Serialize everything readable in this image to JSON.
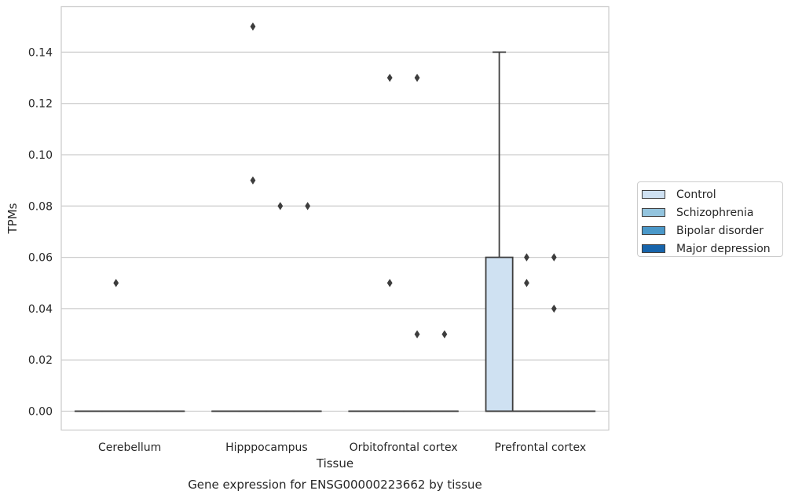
{
  "chart_data": {
    "type": "box",
    "title": "Gene expression for ENSG00000223662 by tissue",
    "xlabel": "Tissue",
    "ylabel": "TPMs",
    "categories": [
      "Cerebellum",
      "Hipppocampus",
      "Orbitofrontal cortex",
      "Prefrontal cortex"
    ],
    "ylim": [
      -0.007,
      0.158
    ],
    "yticks": [
      0.0,
      0.02,
      0.04,
      0.06,
      0.08,
      0.1,
      0.12,
      0.14
    ],
    "ytick_labels": [
      "0.00",
      "0.02",
      "0.04",
      "0.06",
      "0.08",
      "0.10",
      "0.12",
      "0.14"
    ],
    "grid": true,
    "legend_position": "right",
    "series": [
      {
        "name": "Control",
        "color": "#cfe1f2",
        "boxes": [
          {
            "category": "Cerebellum",
            "q1": 0,
            "median": 0,
            "q3": 0,
            "whisker_low": 0,
            "whisker_high": 0,
            "outliers": []
          },
          {
            "category": "Hipppocampus",
            "q1": 0,
            "median": 0,
            "q3": 0,
            "whisker_low": 0,
            "whisker_high": 0,
            "outliers": []
          },
          {
            "category": "Orbitofrontal cortex",
            "q1": 0,
            "median": 0,
            "q3": 0,
            "whisker_low": 0,
            "whisker_high": 0,
            "outliers": []
          },
          {
            "category": "Prefrontal cortex",
            "q1": 0,
            "median": 0,
            "q3": 0.06,
            "whisker_low": 0,
            "whisker_high": 0.14,
            "outliers": []
          }
        ]
      },
      {
        "name": "Schizophrenia",
        "color": "#93c4de",
        "boxes": [
          {
            "category": "Cerebellum",
            "q1": 0,
            "median": 0,
            "q3": 0,
            "whisker_low": 0,
            "whisker_high": 0,
            "outliers": [
              0.05
            ]
          },
          {
            "category": "Hipppocampus",
            "q1": 0,
            "median": 0,
            "q3": 0,
            "whisker_low": 0,
            "whisker_high": 0,
            "outliers": [
              0.09,
              0.15
            ]
          },
          {
            "category": "Orbitofrontal cortex",
            "q1": 0,
            "median": 0,
            "q3": 0,
            "whisker_low": 0,
            "whisker_high": 0,
            "outliers": [
              0.13,
              0.05
            ]
          },
          {
            "category": "Prefrontal cortex",
            "q1": 0,
            "median": 0,
            "q3": 0,
            "whisker_low": 0,
            "whisker_high": 0,
            "outliers": [
              0.06,
              0.05
            ]
          }
        ]
      },
      {
        "name": "Bipolar disorder",
        "color": "#4a98c9",
        "boxes": [
          {
            "category": "Cerebellum",
            "q1": 0,
            "median": 0,
            "q3": 0,
            "whisker_low": 0,
            "whisker_high": 0,
            "outliers": []
          },
          {
            "category": "Hipppocampus",
            "q1": 0,
            "median": 0,
            "q3": 0,
            "whisker_low": 0,
            "whisker_high": 0,
            "outliers": [
              0.08
            ]
          },
          {
            "category": "Orbitofrontal cortex",
            "q1": 0,
            "median": 0,
            "q3": 0,
            "whisker_low": 0,
            "whisker_high": 0,
            "outliers": [
              0.13,
              0.03
            ]
          },
          {
            "category": "Prefrontal cortex",
            "q1": 0,
            "median": 0,
            "q3": 0,
            "whisker_low": 0,
            "whisker_high": 0,
            "outliers": [
              0.06,
              0.04
            ]
          }
        ]
      },
      {
        "name": "Major depression",
        "color": "#1764ab",
        "boxes": [
          {
            "category": "Cerebellum",
            "q1": 0,
            "median": 0,
            "q3": 0,
            "whisker_low": 0,
            "whisker_high": 0,
            "outliers": []
          },
          {
            "category": "Hipppocampus",
            "q1": 0,
            "median": 0,
            "q3": 0,
            "whisker_low": 0,
            "whisker_high": 0,
            "outliers": [
              0.08
            ]
          },
          {
            "category": "Orbitofrontal cortex",
            "q1": 0,
            "median": 0,
            "q3": 0,
            "whisker_low": 0,
            "whisker_high": 0,
            "outliers": [
              0.03
            ]
          },
          {
            "category": "Prefrontal cortex",
            "q1": 0,
            "median": 0,
            "q3": 0,
            "whisker_low": 0,
            "whisker_high": 0,
            "outliers": []
          }
        ]
      }
    ]
  },
  "legend": {
    "items": [
      {
        "label": "Control",
        "color": "#cfe1f2"
      },
      {
        "label": "Schizophrenia",
        "color": "#93c4de"
      },
      {
        "label": "Bipolar disorder",
        "color": "#4a98c9"
      },
      {
        "label": "Major depression",
        "color": "#1764ab"
      }
    ]
  }
}
